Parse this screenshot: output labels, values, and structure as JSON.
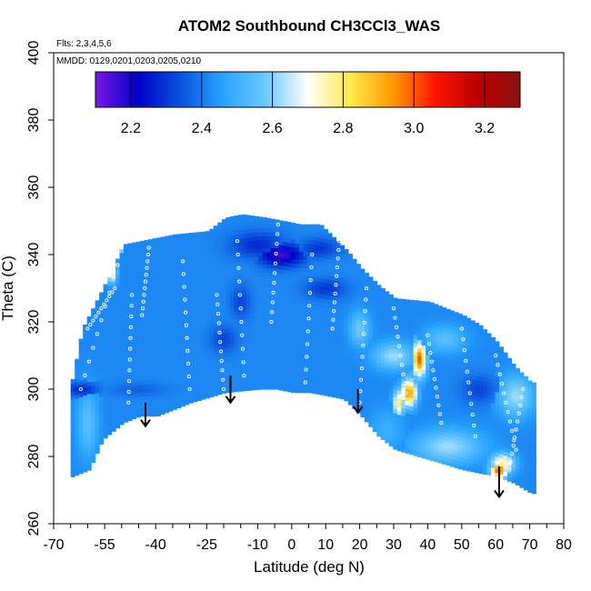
{
  "chart_data": {
    "type": "heatmap",
    "title": "ATOM2 Southbound CH3CCl3_WAS",
    "flights_note": "Flts: 2,3,4,5,6",
    "dates_note": "MMDD: 0129,0201,0203,0205,0210",
    "xlabel": "Latitude (deg N)",
    "ylabel": "Theta (C)",
    "xlim": [
      -70,
      80
    ],
    "ylim": [
      260,
      400
    ],
    "x_ticks": [
      -70,
      -55,
      -40,
      -25,
      -10,
      0,
      10,
      20,
      30,
      40,
      50,
      60,
      70,
      80
    ],
    "x_tick_labels": [
      "-70",
      "-55",
      "-40",
      "-25",
      "-10",
      "0",
      "10",
      "20",
      "30",
      "40",
      "50",
      "60",
      "70",
      "80"
    ],
    "x_minor_ticks": [
      -65,
      -60,
      -50,
      -45,
      -35,
      -30,
      -20,
      -15,
      -5,
      5,
      15,
      25,
      35,
      45,
      55,
      65,
      75
    ],
    "y_ticks": [
      260,
      280,
      300,
      320,
      340,
      360,
      380,
      400
    ],
    "y_tick_labels": [
      "260",
      "280",
      "300",
      "320",
      "340",
      "360",
      "380",
      "400"
    ],
    "colorbar": {
      "range": [
        2.1,
        3.3
      ],
      "ticks": [
        2.2,
        2.4,
        2.6,
        2.8,
        3.0,
        3.2
      ],
      "tick_labels": [
        "2.2",
        "2.4",
        "2.6",
        "2.8",
        "3.0",
        "3.2"
      ],
      "stops": [
        "#7a18e6",
        "#0000c8",
        "#0a52dc",
        "#27a3ff",
        "#6cc8ff",
        "#ffffff",
        "#ffe94a",
        "#ff9a00",
        "#ff1400",
        "#b80000",
        "#8e1010"
      ]
    },
    "default_value": 2.42,
    "domain_lower": [
      [
        -65,
        274
      ],
      [
        -60,
        276
      ],
      [
        -56,
        285
      ],
      [
        -50,
        290
      ],
      [
        -45,
        292
      ],
      [
        -40,
        292
      ],
      [
        -30,
        296
      ],
      [
        -20,
        299
      ],
      [
        -10,
        300
      ],
      [
        -5,
        300
      ],
      [
        0,
        299
      ],
      [
        5,
        299
      ],
      [
        15,
        297
      ],
      [
        20,
        292
      ],
      [
        25,
        286
      ],
      [
        30,
        282
      ],
      [
        40,
        279
      ],
      [
        50,
        276
      ],
      [
        60,
        274
      ],
      [
        65,
        272
      ],
      [
        70,
        269
      ]
    ],
    "domain_upper": [
      [
        -65,
        303
      ],
      [
        -62,
        318
      ],
      [
        -60,
        322
      ],
      [
        -56,
        330
      ],
      [
        -53,
        336
      ],
      [
        -50,
        343
      ],
      [
        -35,
        346
      ],
      [
        -25,
        347
      ],
      [
        -20,
        351
      ],
      [
        -15,
        352
      ],
      [
        -8,
        351
      ],
      [
        -3,
        350
      ],
      [
        2,
        349
      ],
      [
        8,
        349
      ],
      [
        12,
        345
      ],
      [
        16,
        341
      ],
      [
        20,
        336
      ],
      [
        25,
        331
      ],
      [
        30,
        327
      ],
      [
        40,
        326
      ],
      [
        50,
        322
      ],
      [
        55,
        319
      ],
      [
        60,
        314
      ],
      [
        65,
        307
      ],
      [
        70,
        302
      ]
    ],
    "anomalies": [
      {
        "lat": 37.5,
        "theta": 309,
        "value": 3.0,
        "rlat": 2.0,
        "rth": 5.0
      },
      {
        "lat": 34.5,
        "theta": 299,
        "value": 2.95,
        "rlat": 2.2,
        "rth": 4.0
      },
      {
        "lat": 31.5,
        "theta": 296,
        "value": 2.8,
        "rlat": 1.6,
        "rth": 4.0
      },
      {
        "lat": 61.0,
        "theta": 276,
        "value": 3.0,
        "rlat": 2.5,
        "rth": 2.5
      },
      {
        "lat": 62.0,
        "theta": 278,
        "value": 2.78,
        "rlat": 3.5,
        "rth": 3.0
      },
      {
        "lat": 46.0,
        "theta": 283,
        "value": 2.62,
        "rlat": 10.0,
        "rth": 5.0
      },
      {
        "lat": -53.0,
        "theta": 335,
        "value": 2.78,
        "rlat": 1.5,
        "rth": 3.0
      },
      {
        "lat": -3.0,
        "theta": 340,
        "value": 2.16,
        "rlat": 7.0,
        "rth": 3.5
      },
      {
        "lat": -10.0,
        "theta": 343,
        "value": 2.28,
        "rlat": 8.0,
        "rth": 4.0
      },
      {
        "lat": 8.0,
        "theta": 342,
        "value": 2.3,
        "rlat": 6.0,
        "rth": 3.0
      },
      {
        "lat": 10.0,
        "theta": 330,
        "value": 2.3,
        "rlat": 6.0,
        "rth": 3.0
      },
      {
        "lat": -15.0,
        "theta": 326,
        "value": 2.32,
        "rlat": 3.0,
        "rth": 5.0
      },
      {
        "lat": -20.0,
        "theta": 315,
        "value": 2.32,
        "rlat": 4.0,
        "rth": 4.0
      },
      {
        "lat": -62.0,
        "theta": 300,
        "value": 2.28,
        "rlat": 5.0,
        "rth": 2.0
      },
      {
        "lat": -45.0,
        "theta": 300,
        "value": 2.36,
        "rlat": 8.0,
        "rth": 2.0
      },
      {
        "lat": -60.0,
        "theta": 290,
        "value": 2.55,
        "rlat": 3.0,
        "rth": 10.0
      },
      {
        "lat": 30.0,
        "theta": 310,
        "value": 2.62,
        "rlat": 6.0,
        "rth": 4.0
      },
      {
        "lat": 45.0,
        "theta": 315,
        "value": 2.55,
        "rlat": 6.0,
        "rth": 4.0
      },
      {
        "lat": 66.0,
        "theta": 298,
        "value": 2.62,
        "rlat": 5.0,
        "rth": 6.0
      },
      {
        "lat": 55.0,
        "theta": 300,
        "value": 2.32,
        "rlat": 5.0,
        "rth": 4.0
      },
      {
        "lat": 20.0,
        "theta": 318,
        "value": 2.58,
        "rlat": 3.0,
        "rth": 5.0
      },
      {
        "lat": 28.0,
        "theta": 288,
        "value": 2.5,
        "rlat": 5.0,
        "rth": 6.0
      }
    ],
    "sample_tracks": [
      {
        "from": [
          -62,
          300
        ],
        "to": [
          -50,
          341
        ]
      },
      {
        "from": [
          -52,
          330
        ],
        "to": [
          -60,
          318
        ]
      },
      {
        "from": [
          -48,
          296
        ],
        "to": [
          -47,
          328
        ]
      },
      {
        "from": [
          -42,
          342
        ],
        "to": [
          -44,
          322
        ]
      },
      {
        "from": [
          -30,
          300
        ],
        "to": [
          -32,
          338
        ]
      },
      {
        "from": [
          -22,
          328
        ],
        "to": [
          -20,
          300
        ]
      },
      {
        "from": [
          -14,
          304
        ],
        "to": [
          -16,
          344
        ]
      },
      {
        "from": [
          -4,
          349
        ],
        "to": [
          -6,
          320
        ]
      },
      {
        "from": [
          4,
          302
        ],
        "to": [
          6,
          340
        ]
      },
      {
        "from": [
          12,
          318
        ],
        "to": [
          14,
          344
        ]
      },
      {
        "from": [
          20,
          296
        ],
        "to": [
          22,
          330
        ]
      },
      {
        "from": [
          30,
          324
        ],
        "to": [
          34,
          296
        ]
      },
      {
        "from": [
          40,
          316
        ],
        "to": [
          44,
          290
        ]
      },
      {
        "from": [
          50,
          318
        ],
        "to": [
          54,
          286
        ]
      },
      {
        "from": [
          60,
          310
        ],
        "to": [
          66,
          282
        ]
      },
      {
        "from": [
          68,
          300
        ],
        "to": [
          64,
          276
        ]
      }
    ],
    "arrows": [
      {
        "lat": -43,
        "theta_start": 296,
        "theta_end": 289
      },
      {
        "lat": -18,
        "theta_start": 304,
        "theta_end": 296
      },
      {
        "lat": 19.5,
        "theta_start": 300,
        "theta_end": 293
      },
      {
        "lat": 61,
        "theta_start": 277,
        "theta_end": 268
      }
    ]
  }
}
